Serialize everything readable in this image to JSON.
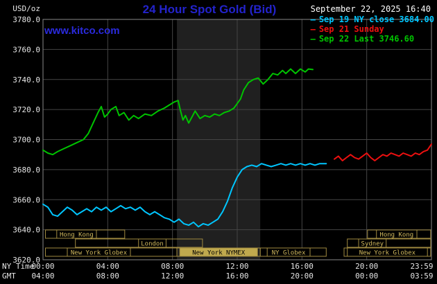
{
  "meta": {
    "units_label": "USD/oz",
    "title": "24 Hour Spot Gold (Bid)",
    "datetime": "September 22, 2025 16:40",
    "watermark": "www.kitco.com",
    "ny_time_label": "NY Time",
    "gmt_label": "GMT"
  },
  "colors": {
    "background": "#000000",
    "title": "#2323cc",
    "watermark": "#2a2add",
    "grid": "#454545",
    "border": "#888888",
    "band": "#202020",
    "axis_text": "#e6e6e6",
    "gmt_text": "#e6e6e6",
    "session_border": "#a08a40",
    "session_text": "#d2ba5e",
    "session_fill": "#c0a94e",
    "cyan": "#00c6ff",
    "red": "#ee1010",
    "green": "#00c400"
  },
  "legend": {
    "marker": "–",
    "items": [
      {
        "label": "Sep 19 NY close 3684.00",
        "color": "#00c6ff"
      },
      {
        "label": "Sep 21 Sunday",
        "color": "#ee1010"
      },
      {
        "label": "Sep 22 Last 3746.60",
        "color": "#00c400"
      }
    ]
  },
  "chart_data": {
    "type": "line",
    "title": "24 Hour Spot Gold (Bid)",
    "xlabel": "NY Time / GMT",
    "ylabel": "USD/oz",
    "xlim": [
      0,
      24
    ],
    "ylim": [
      3620,
      3780
    ],
    "grid": true,
    "legend_position": "top-right",
    "x_gridlines": [
      4,
      8,
      12,
      16,
      20
    ],
    "x_ticks": [
      {
        "pos": 0,
        "ny": "00:00",
        "gmt": "04:00"
      },
      {
        "pos": 4,
        "ny": "04:00",
        "gmt": "08:00"
      },
      {
        "pos": 8,
        "ny": "08:00",
        "gmt": "12:00"
      },
      {
        "pos": 12,
        "ny": "12:00",
        "gmt": "16:00"
      },
      {
        "pos": 16,
        "ny": "16:00",
        "gmt": "20:00"
      },
      {
        "pos": 20,
        "ny": "20:00",
        "gmt": "00:00"
      },
      {
        "pos": 23.983,
        "ny": "23:59",
        "gmt": "03:59"
      }
    ],
    "y_ticks": [
      {
        "value": 3620,
        "label": "3620.0"
      },
      {
        "value": 3640,
        "label": "3640.0"
      },
      {
        "value": 3660,
        "label": "3660.0"
      },
      {
        "value": 3680,
        "label": "3680.0"
      },
      {
        "value": 3700,
        "label": "3700.0"
      },
      {
        "value": 3720,
        "label": "3720.0"
      },
      {
        "value": 3740,
        "label": "3740.0"
      },
      {
        "value": 3760,
        "label": "3760.0"
      },
      {
        "value": 3780,
        "label": "3780.0"
      }
    ],
    "shaded_band": {
      "x0": 8.27,
      "x1": 13.42
    },
    "series": [
      {
        "id": "sep19",
        "name": "Sep 19 NY close 3684.00",
        "color": "#00c6ff",
        "points": [
          [
            0,
            3657
          ],
          [
            0.3,
            3655
          ],
          [
            0.6,
            3650
          ],
          [
            0.9,
            3649
          ],
          [
            1.2,
            3652
          ],
          [
            1.5,
            3655
          ],
          [
            1.8,
            3653
          ],
          [
            2.1,
            3650
          ],
          [
            2.4,
            3652
          ],
          [
            2.7,
            3654
          ],
          [
            3.0,
            3652
          ],
          [
            3.3,
            3655
          ],
          [
            3.6,
            3653
          ],
          [
            3.9,
            3655
          ],
          [
            4.2,
            3652
          ],
          [
            4.5,
            3654
          ],
          [
            4.8,
            3656
          ],
          [
            5.1,
            3654
          ],
          [
            5.4,
            3655
          ],
          [
            5.7,
            3653
          ],
          [
            6.0,
            3655
          ],
          [
            6.3,
            3652
          ],
          [
            6.6,
            3650
          ],
          [
            6.9,
            3652
          ],
          [
            7.2,
            3650
          ],
          [
            7.5,
            3648
          ],
          [
            7.8,
            3647
          ],
          [
            8.1,
            3645
          ],
          [
            8.4,
            3647
          ],
          [
            8.7,
            3644
          ],
          [
            9.0,
            3643
          ],
          [
            9.3,
            3645
          ],
          [
            9.6,
            3642
          ],
          [
            9.9,
            3644
          ],
          [
            10.2,
            3643
          ],
          [
            10.5,
            3645
          ],
          [
            10.8,
            3647
          ],
          [
            11.1,
            3652
          ],
          [
            11.4,
            3659
          ],
          [
            11.7,
            3668
          ],
          [
            12.0,
            3675
          ],
          [
            12.3,
            3680
          ],
          [
            12.6,
            3682
          ],
          [
            12.9,
            3683
          ],
          [
            13.2,
            3682
          ],
          [
            13.5,
            3684
          ],
          [
            13.8,
            3683
          ],
          [
            14.1,
            3682
          ],
          [
            14.4,
            3683
          ],
          [
            14.7,
            3684
          ],
          [
            15.0,
            3683
          ],
          [
            15.3,
            3684
          ],
          [
            15.6,
            3683
          ],
          [
            15.9,
            3684
          ],
          [
            16.2,
            3683
          ],
          [
            16.5,
            3684
          ],
          [
            16.8,
            3683
          ],
          [
            17.1,
            3684
          ],
          [
            17.5,
            3684
          ]
        ]
      },
      {
        "id": "sep21",
        "name": "Sep 21 Sunday",
        "color": "#ee1010",
        "points": [
          [
            18.0,
            3687
          ],
          [
            18.25,
            3689
          ],
          [
            18.5,
            3686
          ],
          [
            18.75,
            3688
          ],
          [
            19.0,
            3690
          ],
          [
            19.25,
            3688
          ],
          [
            19.5,
            3687
          ],
          [
            19.75,
            3689
          ],
          [
            20.0,
            3691
          ],
          [
            20.25,
            3688
          ],
          [
            20.5,
            3686
          ],
          [
            20.75,
            3688
          ],
          [
            21.0,
            3690
          ],
          [
            21.25,
            3689
          ],
          [
            21.5,
            3691
          ],
          [
            21.75,
            3690
          ],
          [
            22.0,
            3689
          ],
          [
            22.25,
            3691
          ],
          [
            22.5,
            3690
          ],
          [
            22.75,
            3689
          ],
          [
            23.0,
            3691
          ],
          [
            23.25,
            3690
          ],
          [
            23.5,
            3692
          ],
          [
            23.75,
            3693
          ],
          [
            24.0,
            3697
          ]
        ]
      },
      {
        "id": "sep22",
        "name": "Sep 22 Last 3746.60",
        "color": "#00c400",
        "points": [
          [
            0,
            3693
          ],
          [
            0.3,
            3691
          ],
          [
            0.6,
            3690
          ],
          [
            0.9,
            3692
          ],
          [
            1.3,
            3694
          ],
          [
            1.7,
            3696
          ],
          [
            2.1,
            3698
          ],
          [
            2.5,
            3700
          ],
          [
            2.8,
            3704
          ],
          [
            3.1,
            3711
          ],
          [
            3.4,
            3718
          ],
          [
            3.6,
            3722
          ],
          [
            3.8,
            3715
          ],
          [
            4.0,
            3717
          ],
          [
            4.2,
            3720
          ],
          [
            4.5,
            3722
          ],
          [
            4.7,
            3716
          ],
          [
            5.0,
            3718
          ],
          [
            5.3,
            3713
          ],
          [
            5.6,
            3716
          ],
          [
            5.9,
            3714
          ],
          [
            6.3,
            3717
          ],
          [
            6.7,
            3716
          ],
          [
            7.1,
            3719
          ],
          [
            7.5,
            3721
          ],
          [
            7.8,
            3723
          ],
          [
            8.1,
            3725
          ],
          [
            8.35,
            3726
          ],
          [
            8.5,
            3719
          ],
          [
            8.65,
            3713
          ],
          [
            8.8,
            3716
          ],
          [
            9.0,
            3711
          ],
          [
            9.2,
            3715
          ],
          [
            9.4,
            3719
          ],
          [
            9.7,
            3714
          ],
          [
            10.0,
            3716
          ],
          [
            10.3,
            3715
          ],
          [
            10.6,
            3717
          ],
          [
            10.9,
            3716
          ],
          [
            11.2,
            3718
          ],
          [
            11.5,
            3719
          ],
          [
            11.8,
            3721
          ],
          [
            12.0,
            3724
          ],
          [
            12.2,
            3727
          ],
          [
            12.4,
            3733
          ],
          [
            12.7,
            3738
          ],
          [
            13.0,
            3740
          ],
          [
            13.3,
            3741
          ],
          [
            13.6,
            3737
          ],
          [
            13.9,
            3740
          ],
          [
            14.2,
            3744
          ],
          [
            14.5,
            3743
          ],
          [
            14.8,
            3746
          ],
          [
            15.0,
            3744
          ],
          [
            15.3,
            3747
          ],
          [
            15.6,
            3744
          ],
          [
            15.9,
            3747
          ],
          [
            16.2,
            3745
          ],
          [
            16.4,
            3747
          ],
          [
            16.67,
            3746.6
          ]
        ]
      }
    ],
    "sessions": [
      {
        "row": 0,
        "label": "Hong Kong",
        "start": 0.15,
        "end": 5.05,
        "label_start": 0.85,
        "label_end": 3.3,
        "filled": false
      },
      {
        "row": 0,
        "label": "Hong Kong",
        "start": 20.05,
        "end": 23.95,
        "label_start": 20.6,
        "label_end": 23.1,
        "filled": false
      },
      {
        "row": 1,
        "label": "London",
        "start": 2.0,
        "end": 9.85,
        "label_start": 5.9,
        "label_end": 7.6,
        "filled": false
      },
      {
        "row": 1,
        "label": "Sydney",
        "start": 18.8,
        "end": 23.95,
        "label_start": 19.5,
        "label_end": 21.2,
        "filled": false
      },
      {
        "row": 2,
        "label": "New York Globex",
        "start": 0.15,
        "end": 8.27,
        "label_start": 1.5,
        "label_end": 5.4,
        "filled": false
      },
      {
        "row": 2,
        "label": "New York NYMEX",
        "start": 8.27,
        "end": 13.42,
        "label_start": 8.45,
        "label_end": 13.25,
        "filled": true
      },
      {
        "row": 2,
        "label": "NY Globex",
        "start": 13.42,
        "end": 17.5,
        "label_start": 13.85,
        "label_end": 16.5,
        "filled": false
      },
      {
        "row": 2,
        "label": "New York Globex",
        "start": 18.6,
        "end": 23.95,
        "label_start": 18.8,
        "label_end": 23.75,
        "filled": false
      }
    ]
  }
}
